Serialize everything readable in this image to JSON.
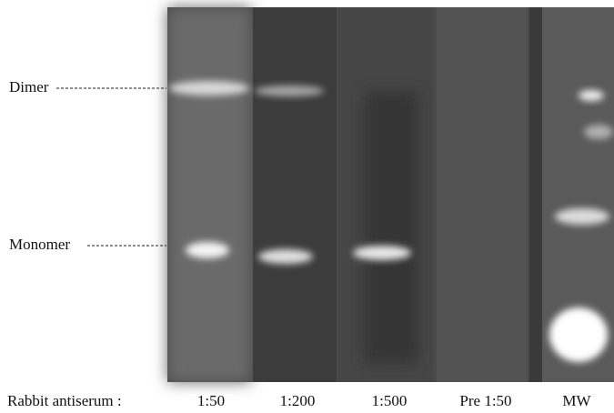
{
  "bands": [
    {
      "label": "Dimer"
    },
    {
      "label": "Monomer"
    }
  ],
  "lanes_caption": "Rabbit antiserum :",
  "lanes": [
    "1:50",
    "1:200",
    "1:500",
    "Pre 1:50",
    "MW"
  ]
}
